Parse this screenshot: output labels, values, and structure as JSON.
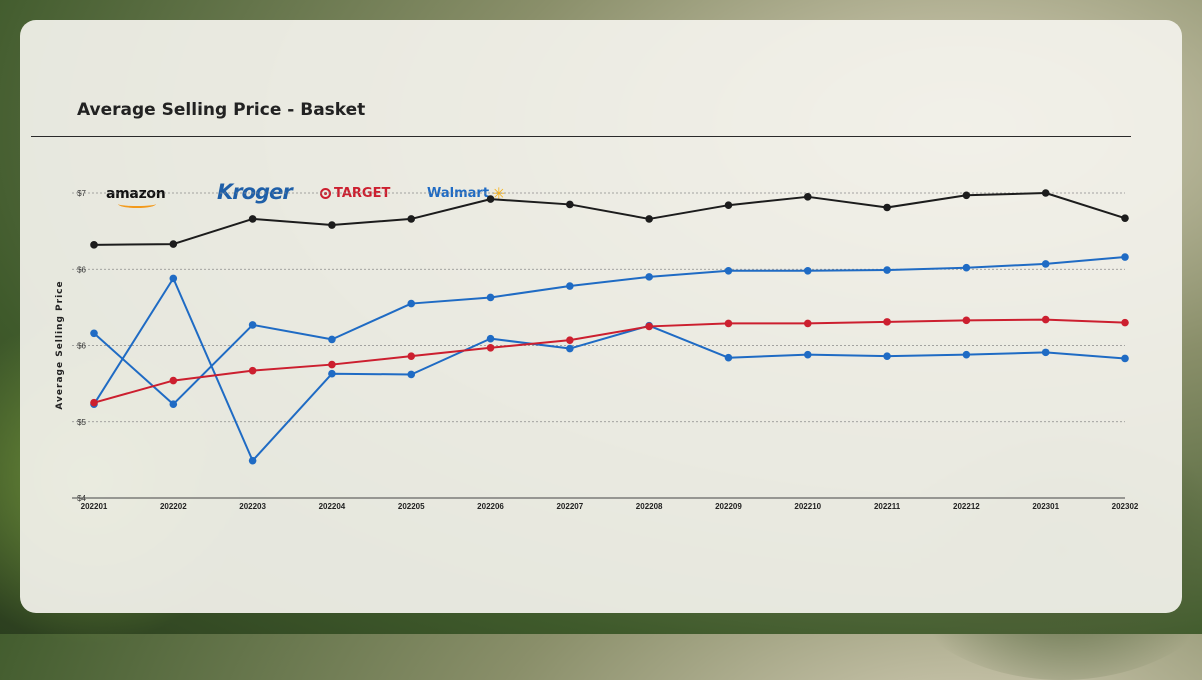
{
  "chart_data": {
    "type": "line",
    "title": "Average Selling Price - Basket",
    "ylabel": "Average Selling Price",
    "xlabel": "",
    "categories": [
      "202201",
      "202202",
      "202203",
      "202204",
      "202205",
      "202206",
      "202207",
      "202208",
      "202209",
      "202210",
      "202211",
      "202212",
      "202301",
      "202302"
    ],
    "y_ticks": [
      "$4",
      "$5",
      "$6",
      "$6",
      "$7"
    ],
    "ylim": [
      4,
      8
    ],
    "grid": "horizontal dashed",
    "legend": [
      {
        "name": "amazon",
        "icon": "amazon-logo",
        "color": "#111111"
      },
      {
        "name": "Kroger",
        "icon": "kroger-logo",
        "color": "#1f5fa8"
      },
      {
        "name": "TARGET",
        "icon": "target-logo",
        "color": "#cc1f2f"
      },
      {
        "name": "Walmart",
        "icon": "walmart-logo",
        "color": "#1f6bc4"
      }
    ],
    "series": [
      {
        "color": "#1c1c1c",
        "values": [
          7.32,
          7.33,
          7.66,
          7.58,
          7.66,
          7.92,
          7.85,
          7.66,
          7.84,
          7.95,
          7.81,
          7.97,
          8.0,
          7.67
        ]
      },
      {
        "color": "#1f6bc4",
        "values": [
          6.16,
          5.23,
          6.27,
          6.08,
          6.55,
          6.63,
          6.78,
          6.9,
          6.98,
          6.98,
          6.99,
          7.02,
          7.07,
          7.16
        ]
      },
      {
        "color": "#1f6bc4",
        "values": [
          5.23,
          6.88,
          4.49,
          5.63,
          5.62,
          6.09,
          5.96,
          6.26,
          5.84,
          5.88,
          5.86,
          5.88,
          5.91,
          5.83
        ]
      },
      {
        "color": "#cc1f2f",
        "values": [
          5.25,
          5.54,
          5.67,
          5.75,
          5.86,
          5.97,
          6.07,
          6.25,
          6.29,
          6.29,
          6.31,
          6.33,
          6.34,
          6.3
        ]
      }
    ]
  }
}
